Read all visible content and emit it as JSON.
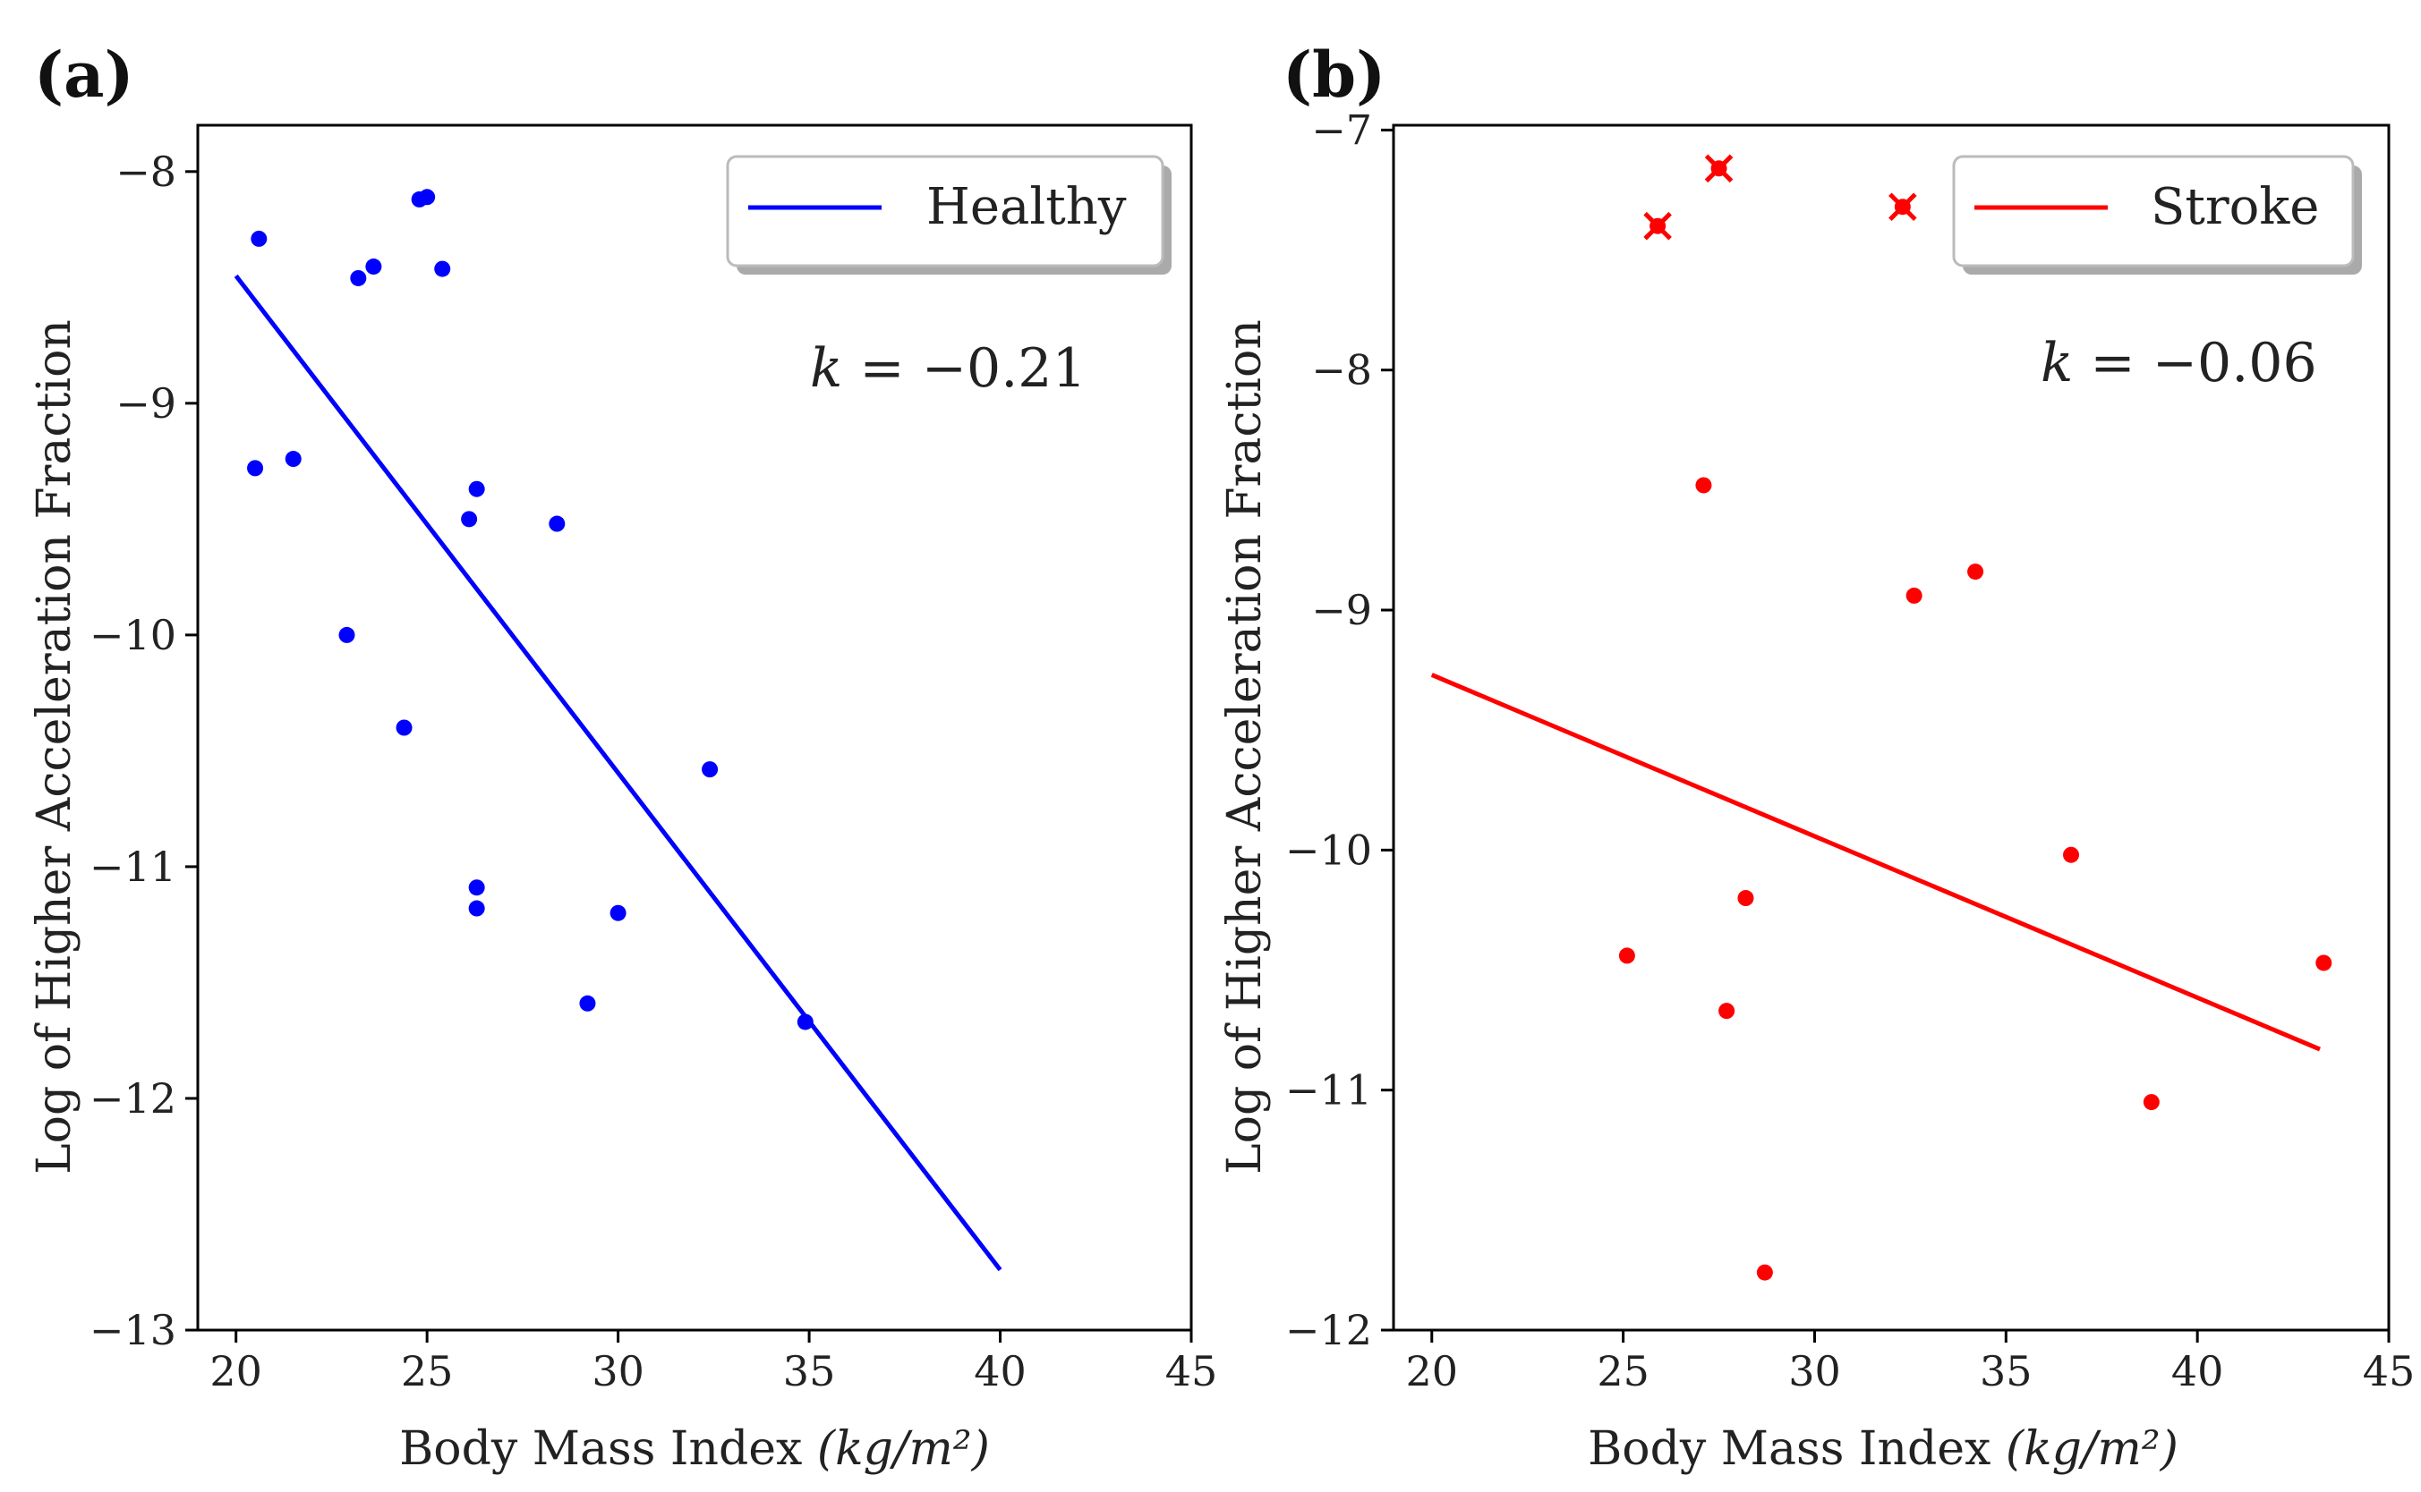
{
  "panels": [
    {
      "panel_label": "(a)",
      "annotation": {
        "symbol": "k",
        "text": " = −0.21"
      },
      "chart_data": {
        "type": "scatter",
        "xlabel_main": "Body Mass Index ",
        "xlabel_unit": "(kg/m²)",
        "ylabel": "Log of Higher Acceleration Fraction",
        "xlim": [
          19,
          45
        ],
        "ylim": [
          -13,
          -7.8
        ],
        "xticks": [
          20,
          25,
          30,
          35,
          40,
          45
        ],
        "yticks": [
          -8,
          -9,
          -10,
          -11,
          -12,
          -13
        ],
        "xtick_labels": [
          "20",
          "25",
          "30",
          "35",
          "40",
          "45"
        ],
        "ytick_labels": [
          "−8",
          "−9",
          "−10",
          "−11",
          "−12",
          "−13"
        ],
        "legend": {
          "label": "Healthy",
          "position": "upper right"
        },
        "color": "#0000ff",
        "points": [
          {
            "x": 20.6,
            "y": -8.29
          },
          {
            "x": 20.5,
            "y": -9.28
          },
          {
            "x": 21.5,
            "y": -9.24
          },
          {
            "x": 23.2,
            "y": -8.46
          },
          {
            "x": 23.6,
            "y": -8.41
          },
          {
            "x": 24.8,
            "y": -8.12
          },
          {
            "x": 25.0,
            "y": -8.11
          },
          {
            "x": 25.4,
            "y": -8.42
          },
          {
            "x": 22.9,
            "y": -10.0
          },
          {
            "x": 24.4,
            "y": -10.4
          },
          {
            "x": 26.1,
            "y": -9.5
          },
          {
            "x": 26.3,
            "y": -9.37
          },
          {
            "x": 28.4,
            "y": -9.52
          },
          {
            "x": 26.3,
            "y": -11.09
          },
          {
            "x": 26.3,
            "y": -11.18
          },
          {
            "x": 29.2,
            "y": -11.59
          },
          {
            "x": 30.0,
            "y": -11.2
          },
          {
            "x": 32.4,
            "y": -10.58
          },
          {
            "x": 34.9,
            "y": -11.67
          }
        ],
        "outliers": [],
        "fit_line": {
          "x": [
            20,
            40
          ],
          "y": [
            -8.45,
            -12.74
          ]
        }
      }
    },
    {
      "panel_label": "(b)",
      "annotation": {
        "symbol": "k",
        "text": " = −0.06"
      },
      "chart_data": {
        "type": "scatter",
        "xlabel_main": "Body Mass Index ",
        "xlabel_unit": "(kg/m²)",
        "ylabel": "Log of Higher Acceleration Fraction",
        "xlim": [
          19,
          45
        ],
        "ylim": [
          -12,
          -6.98
        ],
        "xticks": [
          20,
          25,
          30,
          35,
          40,
          45
        ],
        "yticks": [
          -7,
          -8,
          -9,
          -10,
          -11,
          -12
        ],
        "xtick_labels": [
          "20",
          "25",
          "30",
          "35",
          "40",
          "45"
        ],
        "ytick_labels": [
          "−7",
          "−8",
          "−9",
          "−10",
          "−11",
          "−12"
        ],
        "legend": {
          "label": "Stroke",
          "position": "upper right"
        },
        "color": "#ff0000",
        "points": [
          {
            "x": 27.1,
            "y": -8.48
          },
          {
            "x": 32.6,
            "y": -8.94
          },
          {
            "x": 34.2,
            "y": -8.84
          },
          {
            "x": 36.7,
            "y": -10.02
          },
          {
            "x": 25.1,
            "y": -10.44
          },
          {
            "x": 28.2,
            "y": -10.2
          },
          {
            "x": 27.7,
            "y": -10.67
          },
          {
            "x": 43.3,
            "y": -10.47
          },
          {
            "x": 38.8,
            "y": -11.05
          },
          {
            "x": 28.7,
            "y": -11.76
          }
        ],
        "outliers": [
          {
            "x": 25.9,
            "y": -7.4
          },
          {
            "x": 27.5,
            "y": -7.16
          },
          {
            "x": 32.3,
            "y": -7.32
          }
        ],
        "fit_line": {
          "x": [
            20,
            43.2
          ],
          "y": [
            -9.27,
            -10.83
          ]
        }
      }
    }
  ]
}
